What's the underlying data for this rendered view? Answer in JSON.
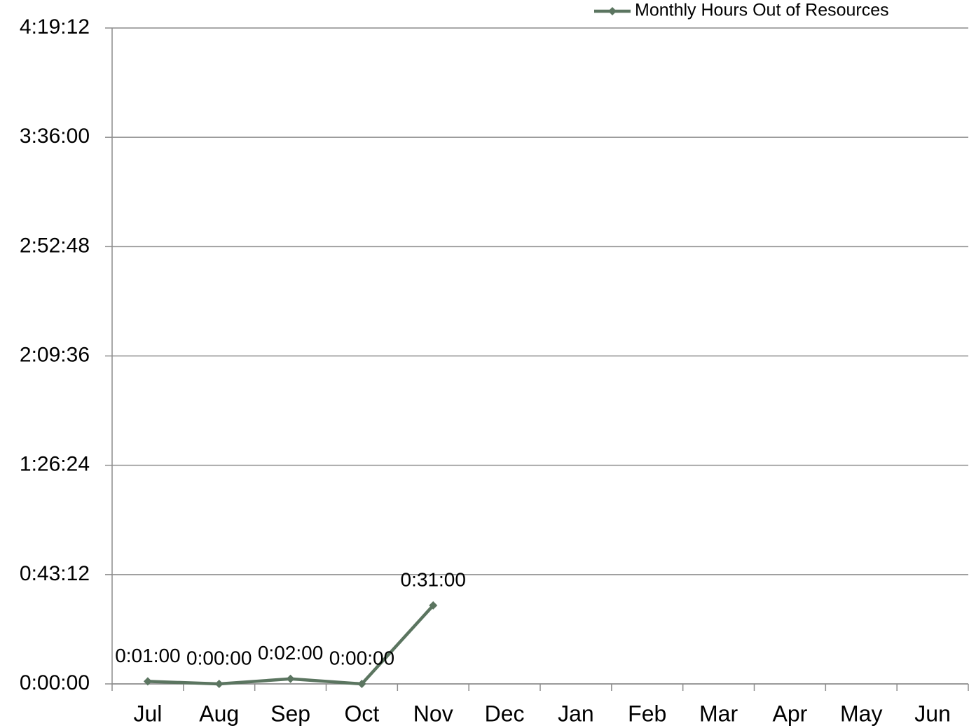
{
  "chart_data": {
    "type": "line",
    "categories": [
      "Jul",
      "Aug",
      "Sep",
      "Oct",
      "Nov",
      "Dec",
      "Jan",
      "Feb",
      "Mar",
      "Apr",
      "May",
      "Jun"
    ],
    "series": [
      {
        "name": "Monthly Hours Out of Resources",
        "color": "#5b7560",
        "values": [
          1,
          0,
          2,
          0,
          31,
          null,
          null,
          null,
          null,
          null,
          null,
          null
        ],
        "value_labels": [
          "0:01:00",
          "0:00:00",
          "0:02:00",
          "0:00:00",
          "0:31:00",
          null,
          null,
          null,
          null,
          null,
          null,
          null
        ]
      }
    ],
    "ylim": [
      0,
      259.2
    ],
    "yticks": [
      {
        "value": 0,
        "label": "0:00:00"
      },
      {
        "value": 43.2,
        "label": "0:43:12"
      },
      {
        "value": 86.4,
        "label": "1:26:24"
      },
      {
        "value": 129.6,
        "label": "2:09:36"
      },
      {
        "value": 172.8,
        "label": "2:52:48"
      },
      {
        "value": 216,
        "label": "3:36:00"
      },
      {
        "value": 259.2,
        "label": "4:19:12"
      }
    ],
    "grid": true,
    "legend": "top-right"
  }
}
